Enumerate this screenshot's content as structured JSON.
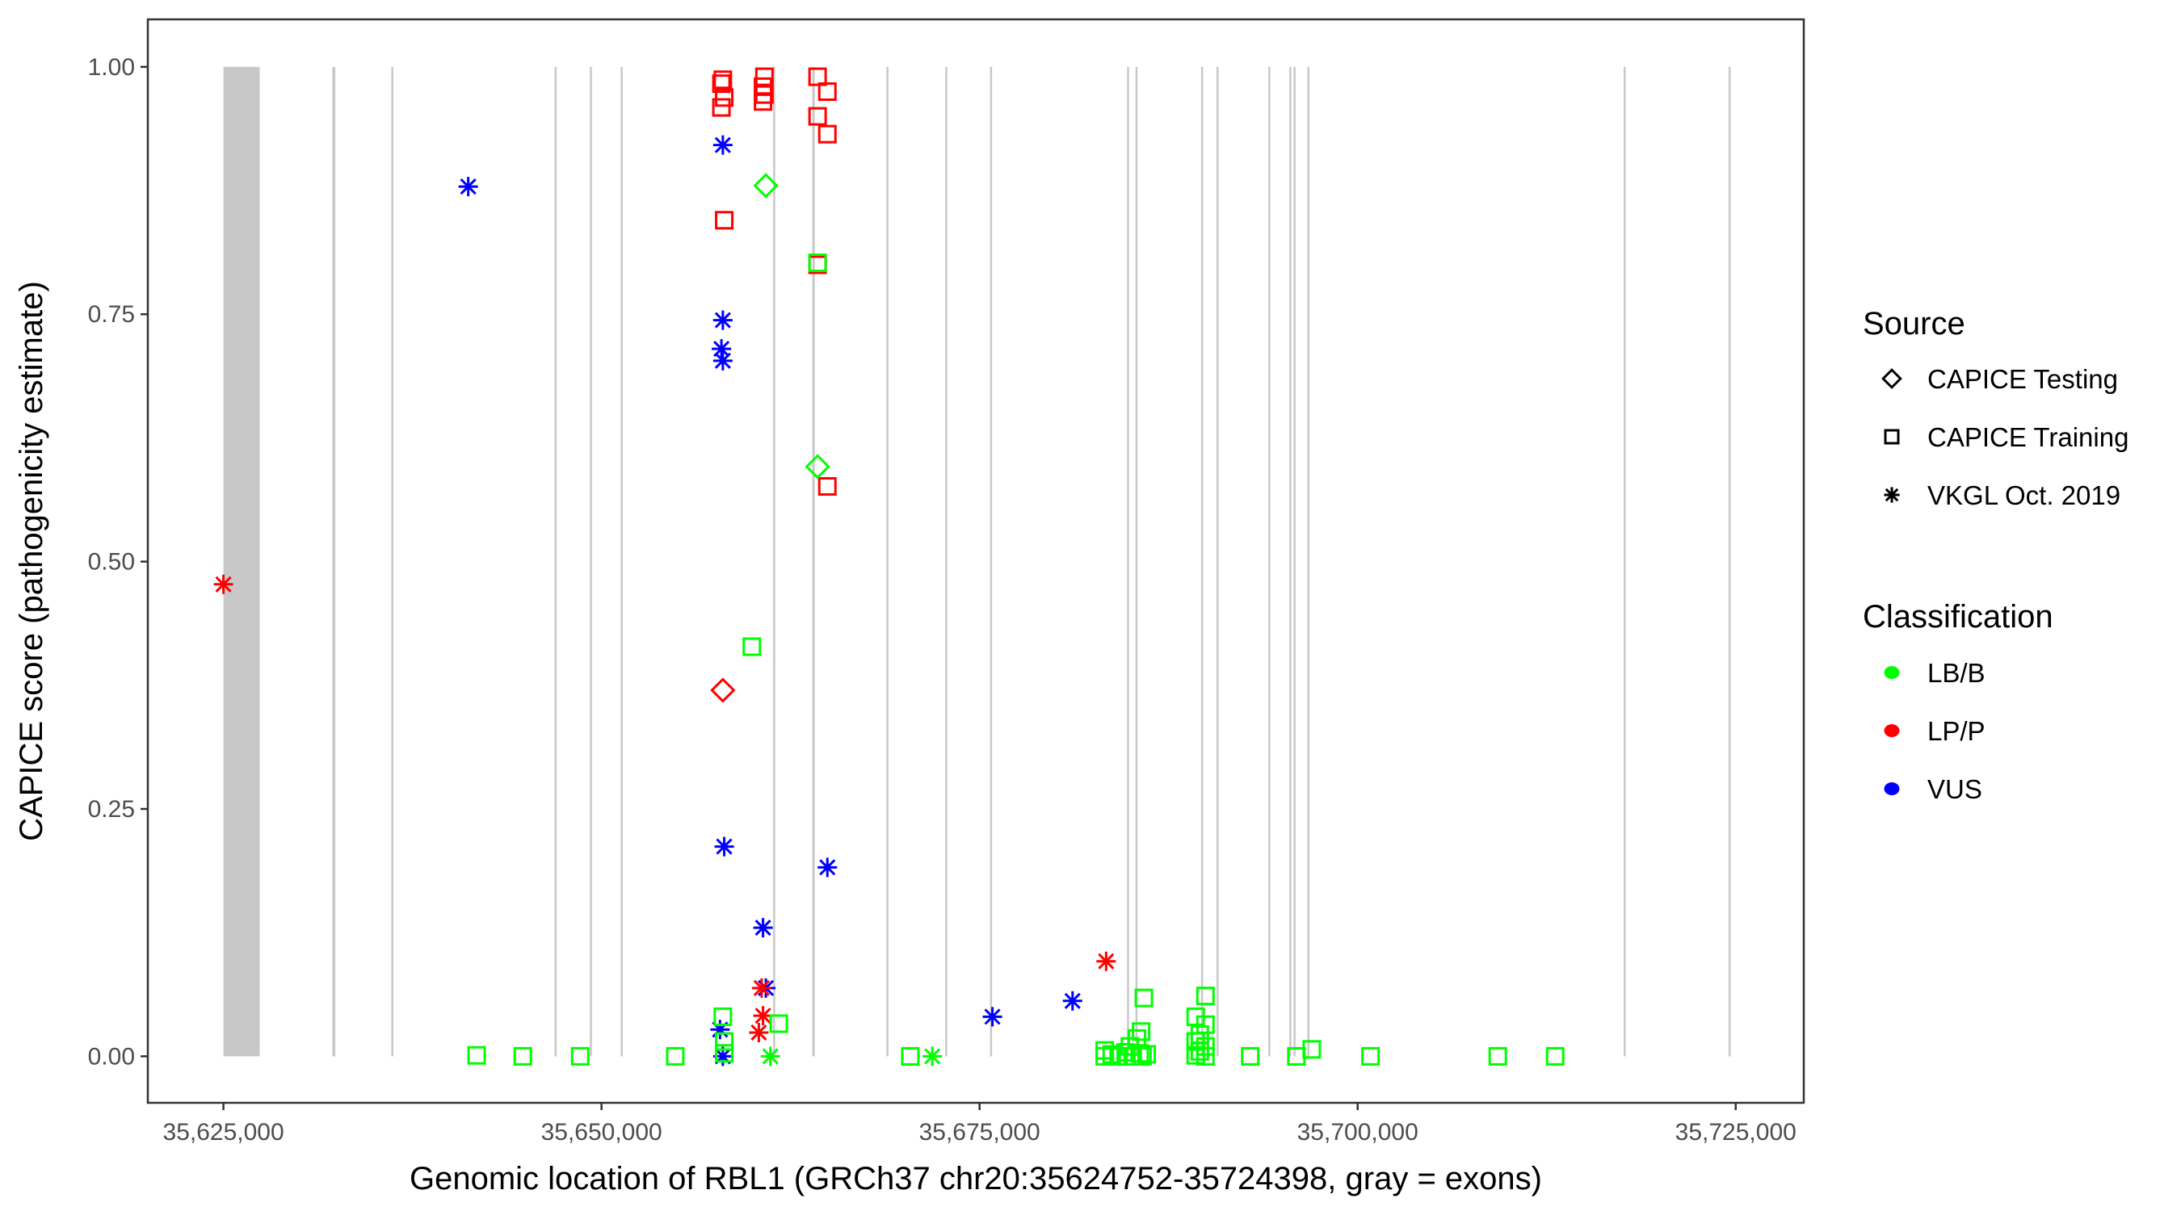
{
  "chart_data": {
    "type": "scatter",
    "xlabel": "Genomic location of RBL1 (GRCh37 chr20:35624752-35724398, gray = exons)",
    "ylabel": "CAPICE score (pathogenicity estimate)",
    "xlim": [
      35620000,
      35729500
    ],
    "ylim": [
      -0.047,
      1.048
    ],
    "x_ticks": [
      35625000,
      35650000,
      35675000,
      35700000,
      35725000
    ],
    "x_tick_labels": [
      "35,625,000",
      "35,650,000",
      "35,675,000",
      "35,700,000",
      "35,725,000"
    ],
    "y_ticks": [
      0,
      0.25,
      0.5,
      0.75,
      1.0
    ],
    "y_tick_labels": [
      "0.00",
      "0.25",
      "0.50",
      "0.75",
      "1.00"
    ],
    "grid": false,
    "exon_color": "#c8c8c8",
    "exons": [
      [
        35625000,
        35627400
      ],
      [
        35632200,
        35632400
      ],
      [
        35636100,
        35636200
      ],
      [
        35646900,
        35647000
      ],
      [
        35649230,
        35649300
      ],
      [
        35651270,
        35651400
      ],
      [
        35661350,
        35661450
      ],
      [
        35663940,
        35664100
      ],
      [
        35668840,
        35668920
      ],
      [
        35672730,
        35672830
      ],
      [
        35675690,
        35675790
      ],
      [
        35684750,
        35684830
      ],
      [
        35685310,
        35685420
      ],
      [
        35689650,
        35689730
      ],
      [
        35690670,
        35690790
      ],
      [
        35694090,
        35694170
      ],
      [
        35695480,
        35695560
      ],
      [
        35695760,
        35695840
      ],
      [
        35696680,
        35696800
      ],
      [
        35717590,
        35717690
      ],
      [
        35724530,
        35724630
      ]
    ],
    "legend": {
      "placement": "right",
      "source": {
        "title": "Source",
        "entries": [
          {
            "key": "testing",
            "label": "CAPICE Testing",
            "shape": "diamond"
          },
          {
            "key": "training",
            "label": "CAPICE Training",
            "shape": "square"
          },
          {
            "key": "vkgl",
            "label": "VKGL Oct. 2019",
            "shape": "asterisk"
          }
        ]
      },
      "classification": {
        "title": "Classification",
        "entries": [
          {
            "key": "LB",
            "label": "LB/B",
            "color": "#00ff00"
          },
          {
            "key": "LP",
            "label": "LP/P",
            "color": "#ff0000"
          },
          {
            "key": "VUS",
            "label": "VUS",
            "color": "#0000ff"
          }
        ]
      }
    },
    "points_columns": [
      "position",
      "score",
      "source",
      "classification"
    ],
    "points": [
      [
        35658023,
        0.987,
        "training",
        "LP"
      ],
      [
        35657930,
        0.983,
        "training",
        "LP"
      ],
      [
        35658115,
        0.969,
        "training",
        "LP"
      ],
      [
        35657930,
        0.959,
        "training",
        "LP"
      ],
      [
        35658115,
        0.845,
        "training",
        "LP"
      ],
      [
        35664288,
        0.99,
        "training",
        "LP"
      ],
      [
        35660773,
        0.99,
        "training",
        "LP"
      ],
      [
        35660680,
        0.98,
        "training",
        "LP"
      ],
      [
        35660773,
        0.972,
        "training",
        "LP"
      ],
      [
        35660680,
        0.965,
        "training",
        "LP"
      ],
      [
        35664935,
        0.975,
        "training",
        "LP"
      ],
      [
        35664288,
        0.95,
        "training",
        "LP"
      ],
      [
        35664935,
        0.932,
        "training",
        "LP"
      ],
      [
        35664288,
        0.8,
        "training",
        "LP"
      ],
      [
        35664935,
        0.576,
        "training",
        "LP"
      ],
      [
        35664288,
        0.802,
        "training",
        "LB"
      ],
      [
        35659940,
        0.414,
        "training",
        "LB"
      ],
      [
        35660865,
        0.88,
        "testing",
        "LB"
      ],
      [
        35664288,
        0.596,
        "testing",
        "LB"
      ],
      [
        35658023,
        0.37,
        "testing",
        "LP"
      ],
      [
        35625000,
        0.477,
        "vkgl",
        "LP"
      ],
      [
        35641188,
        0.879,
        "vkgl",
        "VUS"
      ],
      [
        35658023,
        0.921,
        "vkgl",
        "VUS"
      ],
      [
        35658023,
        0.744,
        "vkgl",
        "VUS"
      ],
      [
        35657930,
        0.715,
        "vkgl",
        "VUS"
      ],
      [
        35658023,
        0.703,
        "vkgl",
        "VUS"
      ],
      [
        35658115,
        0.212,
        "vkgl",
        "VUS"
      ],
      [
        35664935,
        0.191,
        "vkgl",
        "VUS"
      ],
      [
        35660680,
        0.13,
        "vkgl",
        "VUS"
      ],
      [
        35681148,
        0.056,
        "vkgl",
        "VUS"
      ],
      [
        35660865,
        0.069,
        "vkgl",
        "VUS"
      ],
      [
        35675850,
        0.04,
        "vkgl",
        "VUS"
      ],
      [
        35657838,
        0.027,
        "vkgl",
        "VUS"
      ],
      [
        35658023,
        0.0,
        "vkgl",
        "VUS"
      ],
      [
        35683368,
        0.096,
        "vkgl",
        "LP"
      ],
      [
        35660588,
        0.069,
        "vkgl",
        "LP"
      ],
      [
        35660680,
        0.041,
        "vkgl",
        "LP"
      ],
      [
        35660403,
        0.024,
        "vkgl",
        "LP"
      ],
      [
        35661168,
        0.0,
        "vkgl",
        "LB"
      ],
      [
        35671873,
        0.0,
        "vkgl",
        "LB"
      ],
      [
        35641743,
        0.001,
        "training",
        "LB"
      ],
      [
        35644795,
        0.0,
        "training",
        "LB"
      ],
      [
        35648588,
        0.0,
        "training",
        "LB"
      ],
      [
        35654878,
        0.0,
        "training",
        "LB"
      ],
      [
        35658023,
        0.04,
        "training",
        "LB"
      ],
      [
        35658115,
        0.015,
        "training",
        "LB"
      ],
      [
        35658115,
        0.003,
        "training",
        "LB"
      ],
      [
        35661723,
        0.033,
        "training",
        "LB"
      ],
      [
        35670418,
        0.0,
        "training",
        "LB"
      ],
      [
        35683275,
        0.0,
        "training",
        "LB"
      ],
      [
        35683275,
        0.006,
        "training",
        "LB"
      ],
      [
        35683738,
        0.002,
        "training",
        "LB"
      ],
      [
        35684200,
        0.0,
        "training",
        "LB"
      ],
      [
        35684663,
        0.004,
        "training",
        "LB"
      ],
      [
        35684940,
        0.01,
        "training",
        "LB"
      ],
      [
        35685125,
        0.0,
        "training",
        "LB"
      ],
      [
        35685403,
        0.018,
        "training",
        "LB"
      ],
      [
        35685588,
        0.003,
        "training",
        "LB"
      ],
      [
        35685680,
        0.025,
        "training",
        "LB"
      ],
      [
        35685773,
        0.0,
        "training",
        "LB"
      ],
      [
        35685865,
        0.059,
        "training",
        "LB"
      ],
      [
        35686050,
        0.002,
        "training",
        "LB"
      ],
      [
        35689288,
        0.04,
        "training",
        "LB"
      ],
      [
        35689288,
        0.015,
        "training",
        "LB"
      ],
      [
        35689288,
        0.001,
        "training",
        "LB"
      ],
      [
        35689565,
        0.022,
        "training",
        "LB"
      ],
      [
        35689565,
        0.005,
        "training",
        "LB"
      ],
      [
        35689935,
        0.061,
        "training",
        "LB"
      ],
      [
        35689935,
        0.032,
        "training",
        "LB"
      ],
      [
        35689935,
        0.01,
        "training",
        "LB"
      ],
      [
        35689935,
        0.0,
        "training",
        "LB"
      ],
      [
        35692895,
        0.0,
        "training",
        "LB"
      ],
      [
        35695948,
        0.0,
        "training",
        "LB"
      ],
      [
        35696965,
        0.007,
        "training",
        "LB"
      ],
      [
        35700850,
        0.0,
        "training",
        "LB"
      ],
      [
        35709268,
        0.0,
        "training",
        "LB"
      ],
      [
        35713060,
        0.0,
        "training",
        "LB"
      ]
    ]
  }
}
